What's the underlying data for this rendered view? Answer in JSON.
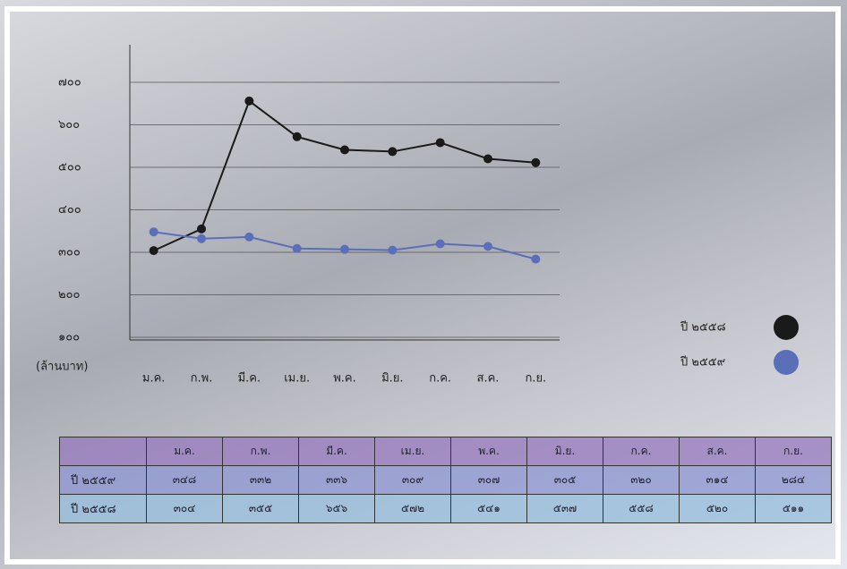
{
  "chart_data": {
    "type": "line",
    "y_label": "(ล้านบาท)",
    "categories": [
      "ม.ค.",
      "ก.พ.",
      "มี.ค.",
      "เม.ย.",
      "พ.ค.",
      "มิ.ย.",
      "ก.ค.",
      "ส.ค.",
      "ก.ย."
    ],
    "series": [
      {
        "name": "ปี ๒๕๕๘",
        "color": "#1a1a1a",
        "values": [
          304,
          355,
          656,
          572,
          541,
          537,
          558,
          520,
          511
        ]
      },
      {
        "name": "ปี ๒๕๕๙",
        "color": "#5a6fb8",
        "values": [
          348,
          332,
          336,
          309,
          307,
          305,
          320,
          314,
          284
        ]
      }
    ],
    "ylim": [
      100,
      700
    ],
    "yticks": [
      {
        "value": 100,
        "label": "๑๐๐"
      },
      {
        "value": 200,
        "label": "๒๐๐"
      },
      {
        "value": 300,
        "label": "๓๐๐"
      },
      {
        "value": 400,
        "label": "๔๐๐"
      },
      {
        "value": 500,
        "label": "๕๐๐"
      },
      {
        "value": 600,
        "label": "๖๐๐"
      },
      {
        "value": 700,
        "label": "๗๐๐"
      }
    ],
    "grid": true
  },
  "table": {
    "header": [
      "ม.ค.",
      "ก.พ.",
      "มี.ค.",
      "เม.ย.",
      "พ.ค.",
      "มิ.ย.",
      "ก.ค.",
      "ส.ค.",
      "ก.ย."
    ],
    "rows": [
      {
        "label": "ปี ๒๕๕๙",
        "cells": [
          "๓๔๘",
          "๓๓๒",
          "๓๓๖",
          "๓๐๙",
          "๓๐๗",
          "๓๐๕",
          "๓๒๐",
          "๓๑๔",
          "๒๘๔"
        ]
      },
      {
        "label": "ปี ๒๕๕๘",
        "cells": [
          "๓๐๔",
          "๓๕๕",
          "๖๕๖",
          "๕๗๒",
          "๕๔๑",
          "๕๓๗",
          "๕๕๘",
          "๕๒๐",
          "๕๑๑"
        ]
      }
    ]
  }
}
